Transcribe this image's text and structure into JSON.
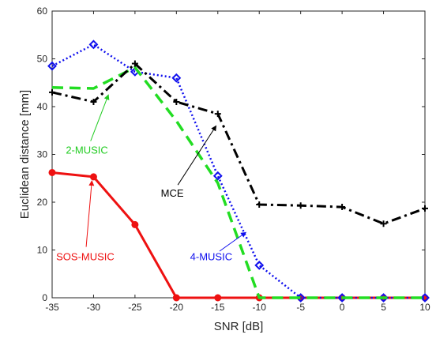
{
  "chart_data": {
    "type": "line",
    "xlabel": "SNR [dB]",
    "ylabel": "Euclidean distance [mm]",
    "xlim": [
      -35,
      10
    ],
    "ylim": [
      0,
      60
    ],
    "x_ticks": [
      -35,
      -30,
      -25,
      -20,
      -15,
      -10,
      -5,
      0,
      5,
      10
    ],
    "y_ticks": [
      0,
      10,
      20,
      30,
      40,
      50,
      60
    ],
    "grid": false,
    "legend": "none",
    "series": [
      {
        "name": "MCE",
        "color": "#000000",
        "line_style": "dash-dot",
        "marker": "plus",
        "x": [
          -35,
          -30,
          -25,
          -20,
          -15,
          -10,
          -5,
          0,
          5,
          10
        ],
        "y": [
          43.0,
          41.0,
          49.0,
          41.0,
          38.5,
          19.5,
          19.3,
          19.0,
          15.5,
          18.7
        ]
      },
      {
        "name": "2-MUSIC",
        "color": "#22dd22",
        "line_style": "dashed",
        "marker": "none",
        "x": [
          -35,
          -30,
          -25,
          -20,
          -15,
          -10,
          -5,
          0,
          5,
          10
        ],
        "y": [
          44.0,
          43.8,
          48.2,
          37.0,
          24.0,
          0,
          0,
          0,
          0,
          0
        ]
      },
      {
        "name": "4-MUSIC",
        "color": "#1010ee",
        "line_style": "dotted",
        "marker": "diamond",
        "x": [
          -35,
          -30,
          -25,
          -20,
          -15,
          -10,
          -5,
          0,
          5,
          10
        ],
        "y": [
          48.5,
          53.0,
          47.3,
          46.0,
          25.5,
          6.8,
          0,
          0,
          0,
          0
        ]
      },
      {
        "name": "SOS-MUSIC",
        "color": "#ee1111",
        "line_style": "solid",
        "marker": "circle",
        "x": [
          -35,
          -30,
          -25,
          -20,
          -15,
          -10,
          -5,
          0,
          5,
          10
        ],
        "y": [
          26.2,
          25.3,
          15.3,
          0,
          0,
          0,
          0,
          0,
          0,
          0
        ]
      }
    ],
    "annotations": [
      {
        "text": "2-MUSIC",
        "color": "#22cc22",
        "text_at": [
          -30.8,
          30.8
        ],
        "arrow_to": [
          -28.2,
          42.5
        ]
      },
      {
        "text": "MCE",
        "color": "#000000",
        "text_at": [
          -20.5,
          21.8
        ],
        "arrow_to": [
          -15.2,
          36.0
        ]
      },
      {
        "text": "SOS-MUSIC",
        "color": "#ee1111",
        "text_at": [
          -31.0,
          8.5
        ],
        "arrow_to": [
          -30.2,
          24.5
        ]
      },
      {
        "text": "4-MUSIC",
        "color": "#1010ee",
        "text_at": [
          -15.8,
          8.5
        ],
        "arrow_to": [
          -11.6,
          13.7
        ]
      }
    ]
  }
}
